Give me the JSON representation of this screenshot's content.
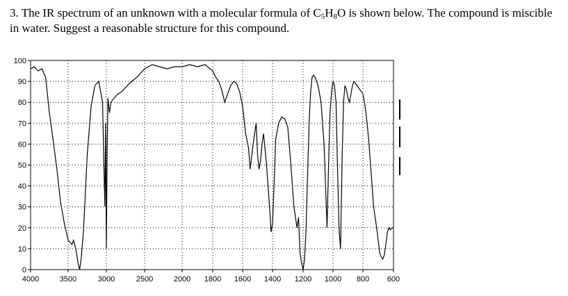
{
  "question": {
    "number": "3.",
    "text_part1": "The IR spectrum of an unknown with a molecular formula of C",
    "sub1": "5",
    "text_part2": "H",
    "sub2": "8",
    "text_part3": "O is shown below.  The compound is miscible in water.  Suggest a reasonable structure for this compound."
  },
  "chart_data": {
    "type": "line",
    "xlim": [
      4000,
      600
    ],
    "ylim": [
      0,
      100
    ],
    "x_ticks": [
      4000,
      3500,
      3000,
      2500,
      2000,
      1800,
      1600,
      1400,
      1200,
      1000,
      800,
      600
    ],
    "x_tick_labels": [
      "4000",
      "3500",
      "3000",
      "2500",
      "2000",
      "1800",
      "1600",
      "1400",
      "1200",
      "1000",
      "800",
      "600"
    ],
    "y_ticks": [
      0,
      10,
      20,
      30,
      40,
      50,
      60,
      70,
      80,
      90,
      100
    ],
    "y_tick_labels": [
      "0",
      "10",
      "20",
      "30",
      "40",
      "50",
      "60",
      "70",
      "80",
      "90",
      "100"
    ],
    "grid": true,
    "series": [
      {
        "x": [
          4000,
          3950,
          3900,
          3850,
          3800,
          3750,
          3700,
          3650,
          3600,
          3550,
          3500,
          3450,
          3430,
          3400,
          3370,
          3350,
          3330,
          3300,
          3250,
          3200,
          3150,
          3100,
          3050,
          3020,
          3010,
          3000,
          2990,
          2980,
          2960,
          2940,
          2900,
          2850,
          2800,
          2700,
          2600,
          2500,
          2400,
          2300,
          2200,
          2100,
          2000,
          1950,
          1900,
          1850,
          1800,
          1780,
          1760,
          1740,
          1720,
          1700,
          1680,
          1660,
          1640,
          1620,
          1600,
          1580,
          1560,
          1550,
          1530,
          1510,
          1500,
          1490,
          1480,
          1470,
          1460,
          1440,
          1420,
          1410,
          1400,
          1390,
          1380,
          1360,
          1340,
          1320,
          1300,
          1280,
          1260,
          1240,
          1230,
          1220,
          1210,
          1200,
          1190,
          1180,
          1170,
          1160,
          1150,
          1140,
          1130,
          1120,
          1100,
          1080,
          1060,
          1050,
          1040,
          1030,
          1020,
          1010,
          1000,
          990,
          980,
          970,
          960,
          950,
          940,
          930,
          920,
          910,
          900,
          890,
          880,
          870,
          860,
          850,
          840,
          830,
          820,
          810,
          800,
          790,
          780,
          770,
          760,
          750,
          740,
          730,
          720,
          710,
          700,
          690,
          680,
          670,
          660,
          650,
          640,
          630,
          620,
          610,
          600
        ],
        "y": [
          96,
          97,
          95,
          96,
          92,
          75,
          62,
          48,
          32,
          22,
          14,
          12,
          14,
          10,
          3,
          0,
          5,
          18,
          55,
          78,
          88,
          90,
          80,
          30,
          70,
          10,
          55,
          82,
          75,
          80,
          82,
          84,
          85,
          89,
          92,
          96,
          98,
          97,
          96,
          97,
          97,
          98,
          97,
          98,
          95,
          92,
          90,
          86,
          80,
          84,
          88,
          90,
          89,
          85,
          78,
          65,
          58,
          48,
          60,
          70,
          55,
          48,
          52,
          60,
          65,
          50,
          30,
          18,
          22,
          40,
          62,
          70,
          73,
          72,
          68,
          50,
          30,
          20,
          25,
          8,
          3,
          0,
          5,
          20,
          45,
          70,
          85,
          92,
          93,
          92,
          88,
          80,
          60,
          40,
          20,
          50,
          75,
          85,
          90,
          88,
          80,
          50,
          20,
          10,
          50,
          80,
          88,
          86,
          82,
          80,
          84,
          88,
          90,
          89,
          88,
          87,
          86,
          85,
          84,
          80,
          75,
          68,
          60,
          50,
          40,
          30,
          25,
          20,
          14,
          8,
          6,
          5,
          7,
          12,
          18,
          20,
          19,
          20,
          20
        ]
      }
    ]
  }
}
